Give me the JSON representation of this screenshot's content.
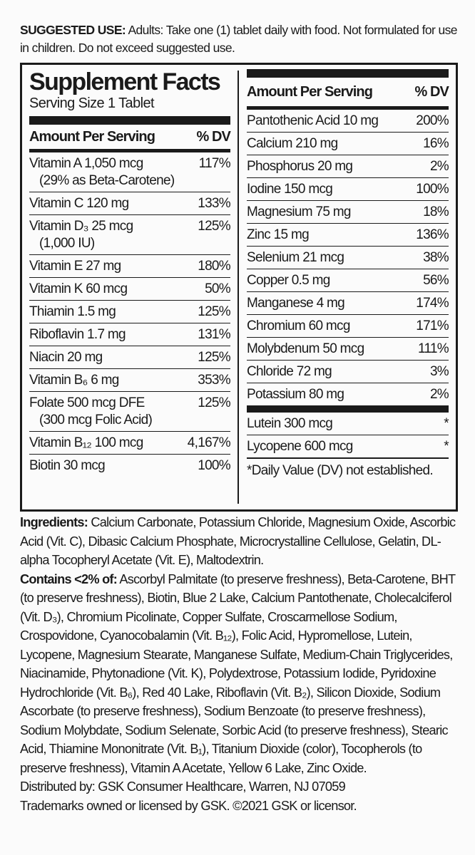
{
  "suggested_use": {
    "label": "SUGGESTED USE:",
    "text": " Adults: Take one (1) tablet daily with food. Not formulated for use in children. Do not exceed suggested use."
  },
  "facts": {
    "title": "Supplement Facts",
    "serving_size": "Serving Size 1 Tablet",
    "header_amount": "Amount Per Serving",
    "header_dv": "% DV",
    "left_rows": [
      {
        "name": "Vitamin A 1,050 mcg",
        "sub": "(29% as Beta-Carotene)",
        "dv": "117%"
      },
      {
        "name": "Vitamin C 120 mg",
        "dv": "133%"
      },
      {
        "name": "Vitamin D₃ 25 mcg",
        "sub": "(1,000 IU)",
        "dv": "125%"
      },
      {
        "name": "Vitamin E 27 mg",
        "dv": "180%"
      },
      {
        "name": "Vitamin K 60 mcg",
        "dv": "50%"
      },
      {
        "name": "Thiamin 1.5 mg",
        "dv": "125%"
      },
      {
        "name": "Riboflavin 1.7 mg",
        "dv": "131%"
      },
      {
        "name": "Niacin 20 mg",
        "dv": "125%"
      },
      {
        "name": "Vitamin B₆ 6 mg",
        "dv": "353%"
      },
      {
        "name": "Folate 500 mcg DFE",
        "sub": "(300 mcg Folic Acid)",
        "dv": "125%"
      },
      {
        "name": "Vitamin B₁₂ 100 mcg",
        "dv": "4,167%"
      },
      {
        "name": "Biotin 30 mcg",
        "dv": "100%"
      }
    ],
    "right_rows": [
      {
        "name": "Pantothenic Acid 10 mg",
        "dv": "200%"
      },
      {
        "name": "Calcium 210 mg",
        "dv": "16%"
      },
      {
        "name": "Phosphorus 20 mg",
        "dv": "2%"
      },
      {
        "name": "Iodine 150 mcg",
        "dv": "100%"
      },
      {
        "name": "Magnesium 75 mg",
        "dv": "18%"
      },
      {
        "name": "Zinc 15 mg",
        "dv": "136%"
      },
      {
        "name": "Selenium 21 mcg",
        "dv": "38%"
      },
      {
        "name": "Copper 0.5 mg",
        "dv": "56%"
      },
      {
        "name": "Manganese 4 mg",
        "dv": "174%"
      },
      {
        "name": "Chromium 60 mcg",
        "dv": "171%"
      },
      {
        "name": "Molybdenum 50 mcg",
        "dv": "111%"
      },
      {
        "name": "Chloride 72 mg",
        "dv": "3%"
      },
      {
        "name": "Potassium 80 mg",
        "dv": "2%"
      }
    ],
    "other_rows": [
      {
        "name": "Lutein 300 mcg",
        "dv": "*"
      },
      {
        "name": "Lycopene 600 mcg",
        "dv": "*"
      }
    ],
    "footnote": "*Daily Value (DV) not established."
  },
  "ingredients": {
    "label": "Ingredients:",
    "text": " Calcium Carbonate, Potassium Chloride, Magnesium Oxide, Ascorbic Acid (Vit. C), Dibasic Calcium Phosphate, Microcrystalline Cellulose, Gelatin, DL-alpha Tocopheryl Acetate (Vit. E), Maltodextrin.",
    "contains_label": "Contains <2% of:",
    "contains_text": " Ascorbyl Palmitate (to preserve freshness), Beta-Carotene, BHT (to preserve freshness), Biotin, Blue 2 Lake, Calcium Pantothenate, Cholecalciferol (Vit. D₃), Chromium Picolinate, Copper Sulfate, Croscarmellose Sodium, Crospovidone, Cyanocobalamin (Vit. B₁₂), Folic Acid, Hypromellose, Lutein, Lycopene, Magnesium Stearate, Manganese Sulfate, Medium-Chain Triglycerides, Niacinamide, Phytonadione (Vit. K), Polydextrose, Potassium Iodide, Pyridoxine Hydrochloride (Vit. B₆), Red 40 Lake, Riboflavin (Vit. B₂), Silicon Dioxide, Sodium Ascorbate (to preserve freshness), Sodium Benzoate (to preserve freshness), Sodium Molybdate, Sodium Selenate, Sorbic Acid (to preserve freshness), Stearic Acid, Thiamine Mononitrate (Vit. B₁), Titanium Dioxide (color), Tocopherols (to preserve freshness), Vitamin A Acetate, Yellow 6 Lake, Zinc Oxide.",
    "distributed": "Distributed by: GSK Consumer Healthcare, Warren, NJ 07059",
    "trademarks": "Trademarks owned or licensed by GSK. ©2021 GSK or licensor."
  }
}
